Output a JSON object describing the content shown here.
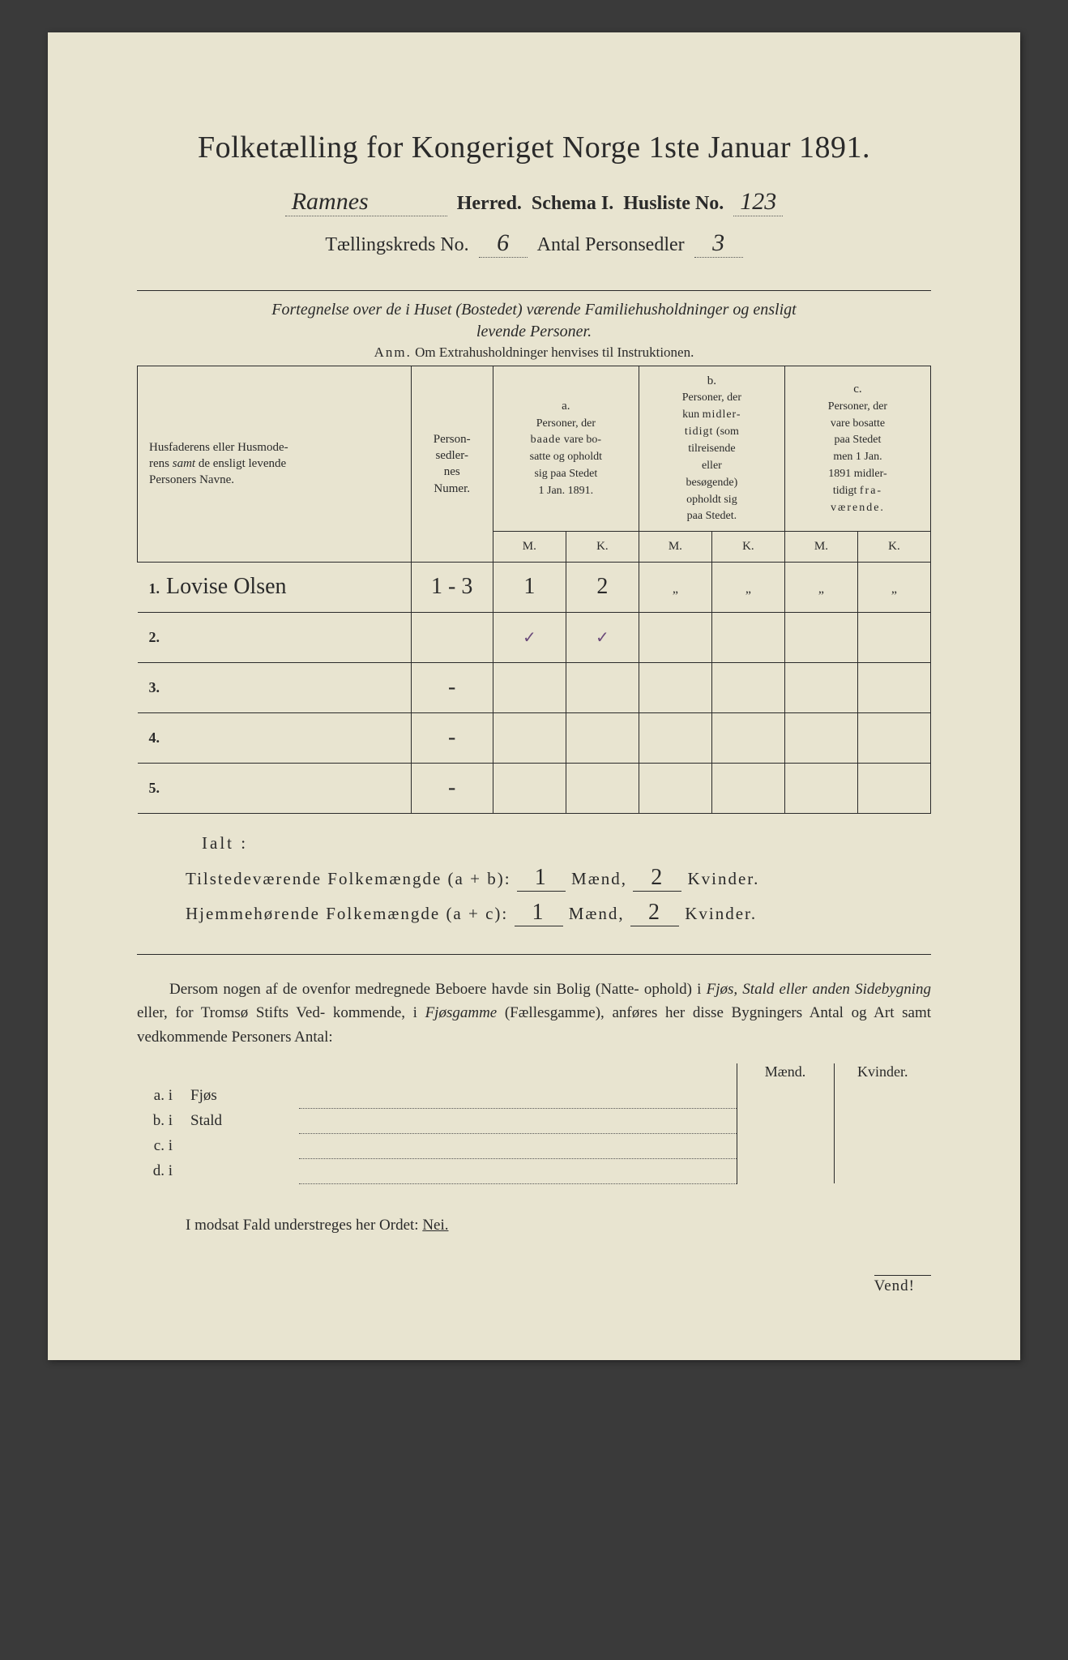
{
  "title": "Folketælling for Kongeriget Norge 1ste Januar 1891.",
  "header": {
    "herred_value": "Ramnes",
    "herred_label": "Herred.",
    "schema_label": "Schema I.",
    "husliste_label": "Husliste No.",
    "husliste_value": "123",
    "kreds_label": "Tællingskreds No.",
    "kreds_value": "6",
    "persons_label": "Antal Personsedler",
    "persons_value": "3"
  },
  "section_note_1": "Fortegnelse over de i Huset (Bostedet) værende Familiehusholdninger og ensligt",
  "section_note_2": "levende Personer.",
  "anm_label": "Anm.",
  "anm_text": "Om Extrahusholdninger henvises til Instruktionen.",
  "table": {
    "col_names_1": "Husfaderens eller Husmode-",
    "col_names_2": "rens samt de ensligt levende",
    "col_names_3": "Personers Navne.",
    "col_nums_1": "Person-",
    "col_nums_2": "sedler-",
    "col_nums_3": "nes",
    "col_nums_4": "Numer.",
    "grp_a": "a.",
    "grp_a_1": "Personer, der",
    "grp_a_2": "baade vare bo-",
    "grp_a_3": "satte og opholdt",
    "grp_a_4": "sig paa Stedet",
    "grp_a_5": "1 Jan. 1891.",
    "grp_b": "b.",
    "grp_b_1": "Personer, der",
    "grp_b_2": "kun midler-",
    "grp_b_3": "tidigt (som",
    "grp_b_4": "tilreisende",
    "grp_b_5": "eller",
    "grp_b_6": "besøgende)",
    "grp_b_7": "opholdt sig",
    "grp_b_8": "paa Stedet.",
    "grp_c": "c.",
    "grp_c_1": "Personer, der",
    "grp_c_2": "vare bosatte",
    "grp_c_3": "paa Stedet",
    "grp_c_4": "men 1 Jan.",
    "grp_c_5": "1891 midler-",
    "grp_c_6": "tidigt fra-",
    "grp_c_7": "værende.",
    "mk_m": "M.",
    "mk_k": "K.",
    "rows": [
      {
        "n": "1.",
        "name": "Lovise Olsen",
        "nums": "1 - 3",
        "a_m": "1",
        "a_k": "2",
        "b_m": "„",
        "b_k": "„",
        "c_m": "„",
        "c_k": "„"
      },
      {
        "n": "2.",
        "name": "",
        "nums": "",
        "a_m": "✓",
        "a_k": "✓",
        "b_m": "",
        "b_k": "",
        "c_m": "",
        "c_k": ""
      },
      {
        "n": "3.",
        "name": "",
        "nums": "-",
        "a_m": "",
        "a_k": "",
        "b_m": "",
        "b_k": "",
        "c_m": "",
        "c_k": ""
      },
      {
        "n": "4.",
        "name": "",
        "nums": "-",
        "a_m": "",
        "a_k": "",
        "b_m": "",
        "b_k": "",
        "c_m": "",
        "c_k": ""
      },
      {
        "n": "5.",
        "name": "",
        "nums": "-",
        "a_m": "",
        "a_k": "",
        "b_m": "",
        "b_k": "",
        "c_m": "",
        "c_k": ""
      }
    ]
  },
  "totals": {
    "ialt": "Ialt :",
    "line1_label": "Tilstedeværende Folkemængde (a + b):",
    "line2_label": "Hjemmehørende Folkemængde (a + c):",
    "maend": "Mænd,",
    "kvinder": "Kvinder.",
    "l1_m": "1",
    "l1_k": "2",
    "l2_m": "1",
    "l2_k": "2"
  },
  "para": {
    "t1": "Dersom nogen af de ovenfor medregnede Beboere havde sin Bolig (Natte-",
    "t2": "ophold) i ",
    "t2i": "Fjøs, Stald eller anden Sidebygning",
    "t3": " eller, for Tromsø Stifts Ved-",
    "t4": "kommende, i ",
    "t4i": "Fjøsgamme",
    "t5": " (Fællesgamme), anføres her disse Bygningers Antal",
    "t6": "og Art samt vedkommende Personers Antal:"
  },
  "small": {
    "maend": "Mænd.",
    "kvinder": "Kvinder.",
    "rows": [
      {
        "lab": "a.  i",
        "type": "Fjøs"
      },
      {
        "lab": "b.  i",
        "type": "Stald"
      },
      {
        "lab": "c.  i",
        "type": ""
      },
      {
        "lab": "d.  i",
        "type": ""
      }
    ]
  },
  "final_note_1": "I modsat Fald understreges her Ordet: ",
  "final_note_nei": "Nei.",
  "vend": "Vend!"
}
